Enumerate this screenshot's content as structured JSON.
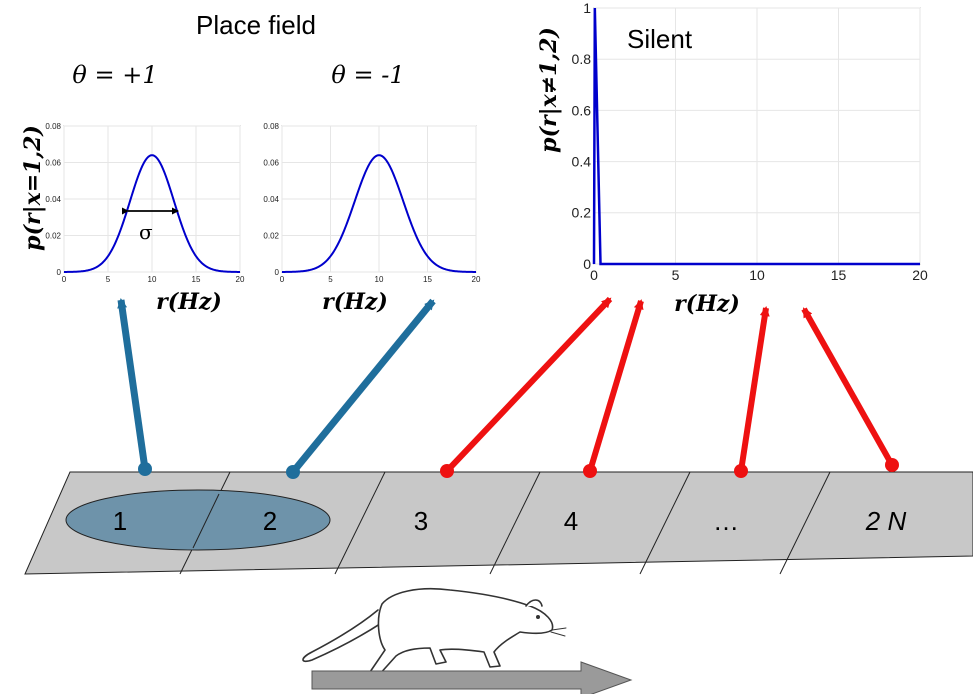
{
  "title": "Place field",
  "theta_plus": "θ = +1",
  "theta_minus": "θ = -1",
  "ylabel_place": "p(r|x=1,2)",
  "ylabel_silent": "p(r|x≠1,2)",
  "xlabel": "r(Hz)",
  "sigma": "σ",
  "silent_label": "Silent",
  "cells": [
    "1",
    "2",
    "3",
    "4",
    "…",
    "2 N"
  ],
  "colors": {
    "curve": "#0000cc",
    "arrow_place": "#1f6e9c",
    "arrow_silent": "#ee1111",
    "track": "#c8c8c8",
    "place_field": "#6e93aa",
    "direction_arrow": "#9a9a9a"
  },
  "icons": {
    "animal": "rat-icon",
    "direction": "right-arrow-icon"
  },
  "chart_data": [
    {
      "type": "line",
      "name": "place-field-theta-plus",
      "xlim": [
        0,
        20
      ],
      "ylim": [
        0,
        0.08
      ],
      "xticks": [
        "0",
        "5",
        "10",
        "15",
        "20"
      ],
      "yticks": [
        "0",
        "0.02",
        "0.04",
        "0.06",
        "0.08"
      ],
      "curve": {
        "kind": "gaussian",
        "mean": 10,
        "sd": 2.5,
        "peak": 0.064
      }
    },
    {
      "type": "line",
      "name": "place-field-theta-minus",
      "xlim": [
        0,
        20
      ],
      "ylim": [
        0,
        0.08
      ],
      "xticks": [
        "0",
        "5",
        "10",
        "15",
        "20"
      ],
      "yticks": [
        "0",
        "0.02",
        "0.04",
        "0.06",
        "0.08"
      ],
      "curve": {
        "kind": "gaussian",
        "mean": 10,
        "sd": 2.5,
        "peak": 0.064
      }
    },
    {
      "type": "line",
      "name": "silent",
      "xlim": [
        0,
        20
      ],
      "ylim": [
        0,
        1
      ],
      "xticks": [
        "0",
        "5",
        "10",
        "15",
        "20"
      ],
      "yticks": [
        "0",
        "0.2",
        "0.4",
        "0.6",
        "0.8",
        "1"
      ],
      "x": [
        0,
        0.05,
        0.4,
        20
      ],
      "y": [
        0,
        1,
        0,
        0
      ]
    }
  ]
}
